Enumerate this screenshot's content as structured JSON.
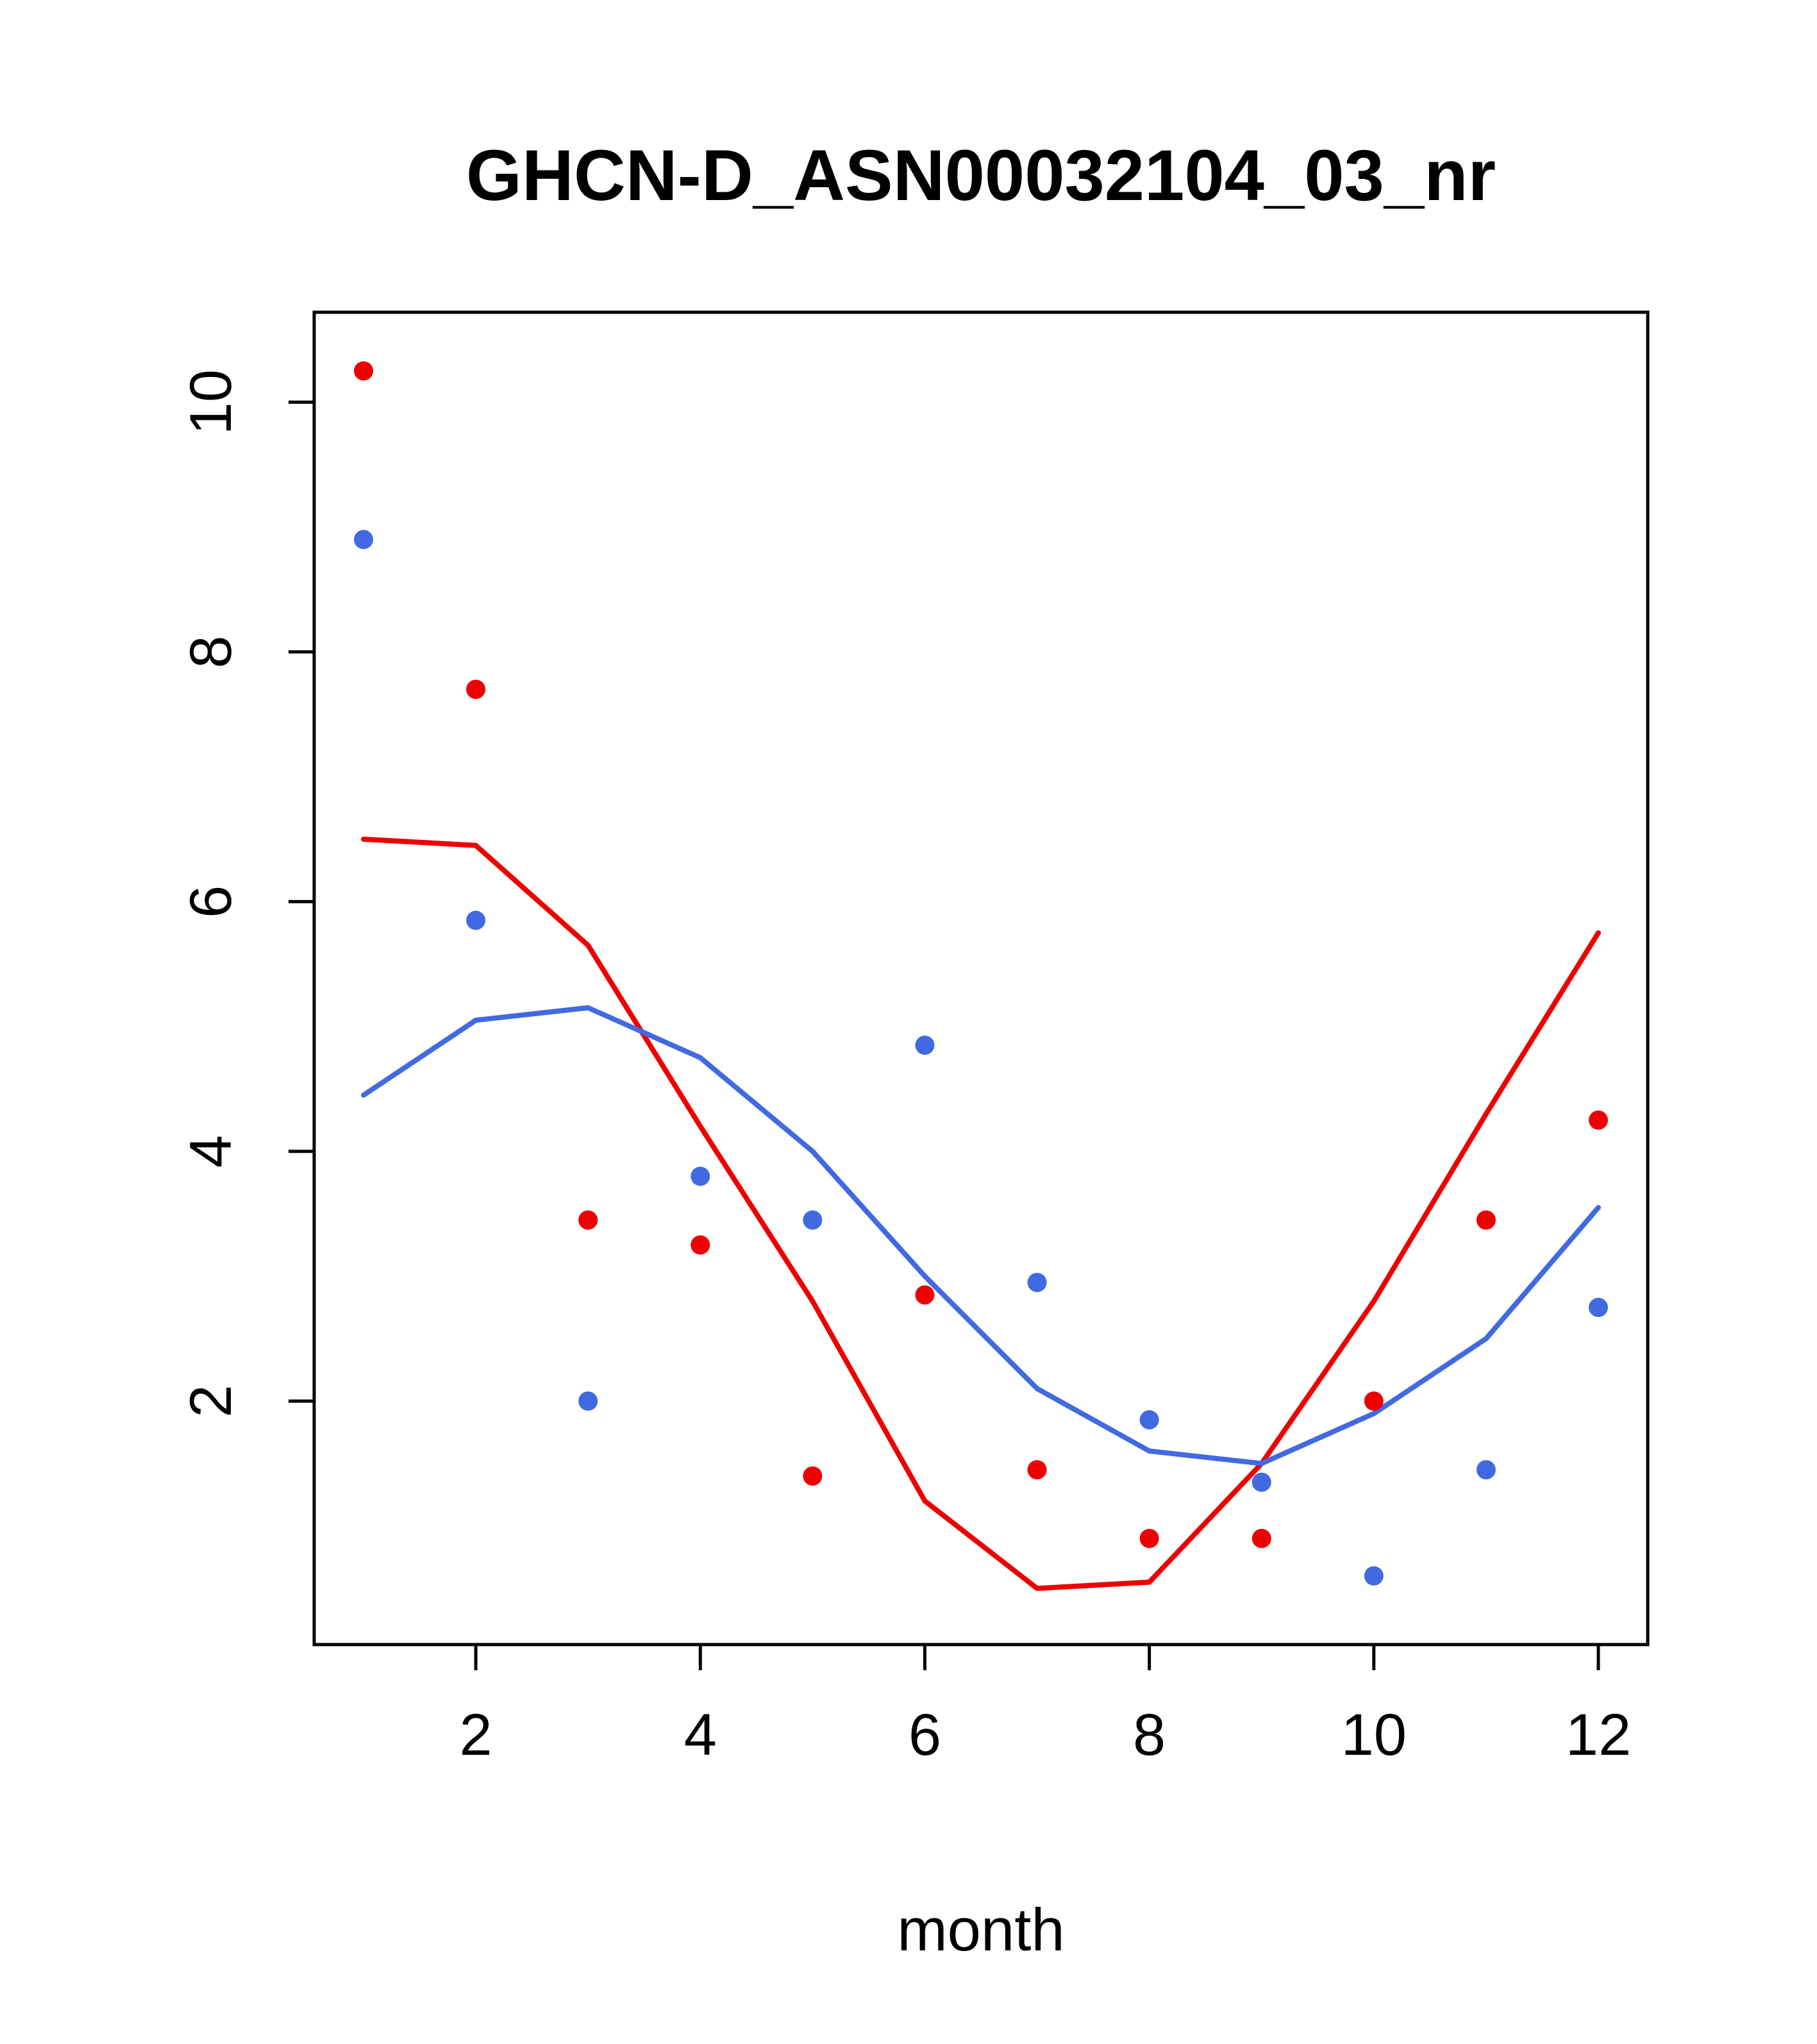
{
  "title": "GHCN-D_ASN00032104_03_nr",
  "xlabel": "month",
  "chart_data": {
    "type": "scatter",
    "title": "GHCN-D_ASN00032104_03_nr",
    "xlabel": "month",
    "ylabel": "",
    "grid": false,
    "legend": null,
    "xlim": [
      0.56,
      12.44
    ],
    "ylim": [
      0.05,
      10.72
    ],
    "x_ticks": [
      2,
      4,
      6,
      8,
      10,
      12
    ],
    "y_ticks": [
      2,
      4,
      6,
      8,
      10
    ],
    "x": [
      1,
      2,
      3,
      4,
      5,
      6,
      7,
      8,
      9,
      10,
      11,
      12
    ],
    "colors": {
      "red": "#ed0000",
      "blue": "#4169e1"
    },
    "series": [
      {
        "name": "red-line",
        "kind": "line",
        "color": "#ed0000",
        "values": [
          6.5,
          6.45,
          5.65,
          4.2,
          2.8,
          1.2,
          0.5,
          0.55,
          1.5,
          2.8,
          4.3,
          5.75
        ]
      },
      {
        "name": "blue-line",
        "kind": "line",
        "color": "#4169e1",
        "values": [
          4.45,
          5.05,
          5.15,
          4.75,
          4.0,
          3.0,
          2.1,
          1.6,
          1.5,
          1.9,
          2.5,
          3.55
        ]
      },
      {
        "name": "red-points",
        "kind": "points",
        "color": "#ed0000",
        "values": [
          10.25,
          7.7,
          3.45,
          3.25,
          1.4,
          2.85,
          1.45,
          0.9,
          0.9,
          2.0,
          3.45,
          4.25
        ]
      },
      {
        "name": "blue-points",
        "kind": "points",
        "color": "#4169e1",
        "values": [
          8.9,
          5.85,
          2.0,
          3.8,
          3.45,
          4.85,
          2.95,
          1.85,
          1.35,
          0.6,
          1.45,
          2.75
        ]
      }
    ]
  }
}
